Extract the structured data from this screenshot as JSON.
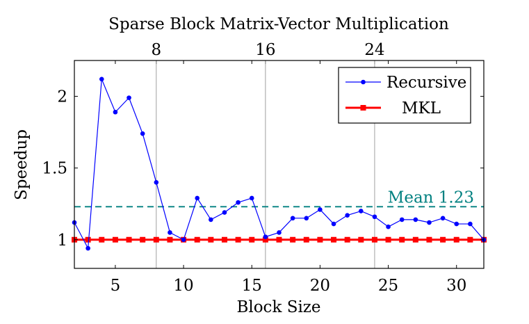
{
  "chart_data": {
    "type": "line",
    "title": "Sparse Block Matrix-Vector Multiplication",
    "xlabel": "Block Size",
    "ylabel": "Speedup",
    "xlim": [
      2,
      32
    ],
    "ylim": [
      0.8,
      2.25
    ],
    "x_ticks": [
      5,
      10,
      15,
      20,
      25,
      30
    ],
    "y_ticks": [
      1,
      1.5,
      2
    ],
    "y_tick_labels": [
      "1",
      "1.5",
      "2"
    ],
    "top_ticks": [
      8,
      16,
      24
    ],
    "vertical_gridlines": [
      8,
      16,
      24
    ],
    "series": [
      {
        "name": "Recursive",
        "color": "#0000ff",
        "marker": "circle",
        "x": [
          2,
          3,
          4,
          5,
          6,
          7,
          8,
          9,
          10,
          11,
          12,
          13,
          14,
          15,
          16,
          17,
          18,
          19,
          20,
          21,
          22,
          23,
          24,
          25,
          26,
          27,
          28,
          29,
          30,
          31,
          32
        ],
        "values": [
          1.12,
          0.94,
          2.12,
          1.89,
          1.99,
          1.74,
          1.4,
          1.05,
          1.0,
          1.29,
          1.14,
          1.19,
          1.26,
          1.29,
          1.02,
          1.05,
          1.15,
          1.15,
          1.21,
          1.11,
          1.17,
          1.2,
          1.16,
          1.09,
          1.14,
          1.14,
          1.12,
          1.15,
          1.11,
          1.11,
          1.0
        ]
      },
      {
        "name": "MKL",
        "color": "#ff0000",
        "marker": "square",
        "x": [
          2,
          3,
          4,
          5,
          6,
          7,
          8,
          9,
          10,
          11,
          12,
          13,
          14,
          15,
          16,
          17,
          18,
          19,
          20,
          21,
          22,
          23,
          24,
          25,
          26,
          27,
          28,
          29,
          30,
          31,
          32
        ],
        "values": [
          1,
          1,
          1,
          1,
          1,
          1,
          1,
          1,
          1,
          1,
          1,
          1,
          1,
          1,
          1,
          1,
          1,
          1,
          1,
          1,
          1,
          1,
          1,
          1,
          1,
          1,
          1,
          1,
          1,
          1,
          1
        ]
      }
    ],
    "annotations": [
      {
        "text": "Mean 1.23",
        "y": 1.23,
        "color": "#008080",
        "style": "dashed"
      }
    ],
    "legend": {
      "position": "top-right",
      "entries": [
        "Recursive",
        "MKL"
      ]
    }
  }
}
